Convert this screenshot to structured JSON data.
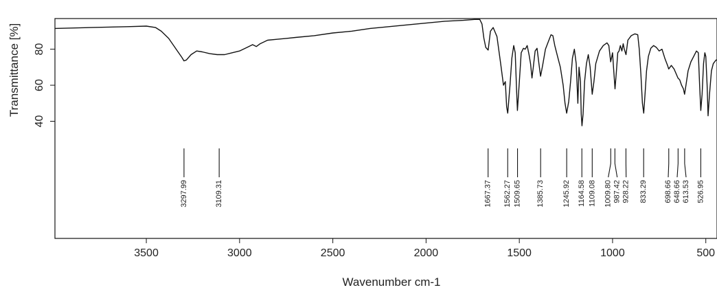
{
  "chart_data": {
    "type": "line",
    "title": "",
    "xlabel": "Wavenumber cm-1",
    "ylabel": "Transmittance [%]",
    "xlim": [
      3990,
      440
    ],
    "ylim": [
      -25,
      97
    ],
    "x_reversed": true,
    "grid": false,
    "legend": "none",
    "xticks": [
      {
        "value": 3500,
        "label": "3500"
      },
      {
        "value": 3000,
        "label": "3000"
      },
      {
        "value": 2500,
        "label": "2500"
      },
      {
        "value": 2000,
        "label": "2000"
      },
      {
        "value": 1500,
        "label": "1500"
      },
      {
        "value": 1000,
        "label": "1000"
      },
      {
        "value": 500,
        "label": "500"
      }
    ],
    "yticks": [
      {
        "value": 40,
        "label": "40"
      },
      {
        "value": 60,
        "label": "60"
      },
      {
        "value": 80,
        "label": "80"
      }
    ],
    "series": [
      {
        "color": "#111111",
        "points": [
          [
            3990,
            91.5
          ],
          [
            3800,
            92.0
          ],
          [
            3600,
            92.5
          ],
          [
            3500,
            92.8
          ],
          [
            3450,
            92.0
          ],
          [
            3420,
            90.0
          ],
          [
            3380,
            86.0
          ],
          [
            3340,
            80.0
          ],
          [
            3310,
            75.5
          ],
          [
            3298,
            73.5
          ],
          [
            3285,
            74.0
          ],
          [
            3260,
            77.0
          ],
          [
            3230,
            79.0
          ],
          [
            3200,
            78.5
          ],
          [
            3160,
            77.5
          ],
          [
            3120,
            77.0
          ],
          [
            3080,
            77.0
          ],
          [
            3040,
            78.0
          ],
          [
            3000,
            79.0
          ],
          [
            2960,
            81.0
          ],
          [
            2930,
            82.5
          ],
          [
            2910,
            81.5
          ],
          [
            2890,
            83.0
          ],
          [
            2850,
            85.0
          ],
          [
            2800,
            85.5
          ],
          [
            2750,
            86.0
          ],
          [
            2700,
            86.5
          ],
          [
            2600,
            87.5
          ],
          [
            2500,
            89.0
          ],
          [
            2400,
            90.0
          ],
          [
            2300,
            91.5
          ],
          [
            2200,
            92.5
          ],
          [
            2100,
            93.5
          ],
          [
            2000,
            94.5
          ],
          [
            1900,
            95.5
          ],
          [
            1800,
            96.0
          ],
          [
            1740,
            96.5
          ],
          [
            1712,
            96.5
          ],
          [
            1700,
            94.0
          ],
          [
            1690,
            86.0
          ],
          [
            1680,
            81.0
          ],
          [
            1667,
            79.5
          ],
          [
            1655,
            90.0
          ],
          [
            1640,
            92.0
          ],
          [
            1620,
            87.0
          ],
          [
            1600,
            72.0
          ],
          [
            1585,
            60.0
          ],
          [
            1575,
            62.0
          ],
          [
            1568,
            48.0
          ],
          [
            1562,
            44.5
          ],
          [
            1550,
            60.0
          ],
          [
            1540,
            75.0
          ],
          [
            1530,
            82.0
          ],
          [
            1522,
            78.0
          ],
          [
            1515,
            58.0
          ],
          [
            1510,
            46.0
          ],
          [
            1500,
            62.0
          ],
          [
            1490,
            78.0
          ],
          [
            1478,
            80.5
          ],
          [
            1468,
            80.0
          ],
          [
            1458,
            82.0
          ],
          [
            1448,
            77.0
          ],
          [
            1440,
            72.0
          ],
          [
            1432,
            64.0
          ],
          [
            1425,
            70.0
          ],
          [
            1415,
            79.0
          ],
          [
            1405,
            80.5
          ],
          [
            1395,
            72.0
          ],
          [
            1386,
            65.0
          ],
          [
            1375,
            71.0
          ],
          [
            1360,
            80.0
          ],
          [
            1345,
            84.0
          ],
          [
            1330,
            88.0
          ],
          [
            1320,
            87.5
          ],
          [
            1310,
            82.0
          ],
          [
            1295,
            76.0
          ],
          [
            1280,
            70.0
          ],
          [
            1265,
            60.0
          ],
          [
            1255,
            50.0
          ],
          [
            1246,
            44.5
          ],
          [
            1235,
            51.0
          ],
          [
            1225,
            62.0
          ],
          [
            1215,
            75.0
          ],
          [
            1205,
            80.0
          ],
          [
            1195,
            72.0
          ],
          [
            1186,
            50.0
          ],
          [
            1180,
            70.0
          ],
          [
            1172,
            62.0
          ],
          [
            1168,
            44.0
          ],
          [
            1164,
            37.5
          ],
          [
            1158,
            44.0
          ],
          [
            1150,
            62.0
          ],
          [
            1140,
            72.0
          ],
          [
            1130,
            77.0
          ],
          [
            1120,
            70.0
          ],
          [
            1109,
            55.0
          ],
          [
            1100,
            62.0
          ],
          [
            1090,
            72.0
          ],
          [
            1070,
            79.0
          ],
          [
            1050,
            82.0
          ],
          [
            1030,
            83.5
          ],
          [
            1020,
            82.0
          ],
          [
            1010,
            73.0
          ],
          [
            1000,
            78.0
          ],
          [
            995,
            70.0
          ],
          [
            987,
            58.0
          ],
          [
            980,
            67.0
          ],
          [
            972,
            78.0
          ],
          [
            965,
            79.0
          ],
          [
            958,
            82.0
          ],
          [
            950,
            79.0
          ],
          [
            943,
            83.0
          ],
          [
            937,
            80.0
          ],
          [
            928,
            77.0
          ],
          [
            918,
            85.0
          ],
          [
            900,
            87.5
          ],
          [
            880,
            88.5
          ],
          [
            865,
            88.0
          ],
          [
            857,
            80.0
          ],
          [
            848,
            66.0
          ],
          [
            840,
            50.0
          ],
          [
            833,
            44.5
          ],
          [
            826,
            55.0
          ],
          [
            818,
            68.0
          ],
          [
            808,
            76.0
          ],
          [
            795,
            80.5
          ],
          [
            780,
            82.0
          ],
          [
            765,
            81.0
          ],
          [
            750,
            79.0
          ],
          [
            735,
            80.0
          ],
          [
            720,
            75.0
          ],
          [
            705,
            71.0
          ],
          [
            699,
            69.0
          ],
          [
            685,
            71.0
          ],
          [
            670,
            69.0
          ],
          [
            649,
            64.0
          ],
          [
            640,
            63.0
          ],
          [
            630,
            60.0
          ],
          [
            620,
            58.0
          ],
          [
            614,
            55.0
          ],
          [
            605,
            61.0
          ],
          [
            595,
            68.0
          ],
          [
            580,
            73.0
          ],
          [
            565,
            76.0
          ],
          [
            550,
            79.0
          ],
          [
            540,
            78.0
          ],
          [
            533,
            60.0
          ],
          [
            527,
            46.0
          ],
          [
            520,
            55.0
          ],
          [
            512,
            72.0
          ],
          [
            505,
            78.0
          ],
          [
            500,
            76.0
          ],
          [
            493,
            60.0
          ],
          [
            488,
            43.0
          ],
          [
            480,
            55.0
          ],
          [
            470,
            68.0
          ],
          [
            460,
            72.0
          ],
          [
            445,
            74.0
          ],
          [
            440,
            74.0
          ]
        ]
      }
    ],
    "peaks": [
      {
        "value": 3297.99,
        "label": "3297.99"
      },
      {
        "value": 3109.31,
        "label": "3109.31"
      },
      {
        "value": 1667.37,
        "label": "1667.37"
      },
      {
        "value": 1562.27,
        "label": "1562.27"
      },
      {
        "value": 1509.65,
        "label": "1509.65"
      },
      {
        "value": 1385.73,
        "label": "1385.73"
      },
      {
        "value": 1245.92,
        "label": "1245.92"
      },
      {
        "value": 1164.58,
        "label": "1164.58"
      },
      {
        "value": 1109.08,
        "label": "1109.08"
      },
      {
        "value": 1009.8,
        "label": "1009.80"
      },
      {
        "value": 987.42,
        "label": "987.42"
      },
      {
        "value": 928.22,
        "label": "928.22"
      },
      {
        "value": 833.29,
        "label": "833.29"
      },
      {
        "value": 698.66,
        "label": "698.66"
      },
      {
        "value": 648.66,
        "label": "648.66"
      },
      {
        "value": 613.53,
        "label": "613.53"
      },
      {
        "value": 526.95,
        "label": "526.95"
      }
    ]
  }
}
